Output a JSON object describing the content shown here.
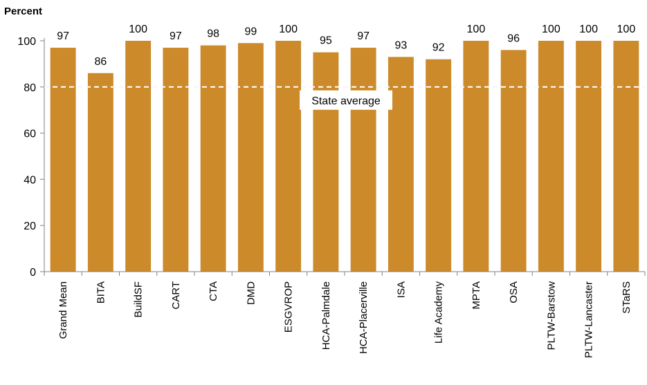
{
  "chart_data": {
    "type": "bar",
    "title": "",
    "xlabel": "",
    "ylabel": "Percent",
    "ylim": [
      0,
      100
    ],
    "yticks": [
      0,
      20,
      40,
      60,
      80,
      100
    ],
    "grid": false,
    "categories": [
      "Grand Mean",
      "BITA",
      "BuildSF",
      "CART",
      "CTA",
      "DMD",
      "ESGVROP",
      "HCA-Palmdale",
      "HCA-Placerville",
      "ISA",
      "Life Academy",
      "MPTA",
      "OSA",
      "PLTW-Barstow",
      "PLTW-Lancaster",
      "STaRS"
    ],
    "values": [
      97,
      86,
      100,
      97,
      98,
      99,
      100,
      95,
      97,
      93,
      92,
      100,
      96,
      100,
      100,
      100
    ],
    "bar_color": "#CC8A2A",
    "reference_line": {
      "value": 80,
      "label": "State average",
      "style": "dashed",
      "color": "#b0b0b0"
    }
  }
}
